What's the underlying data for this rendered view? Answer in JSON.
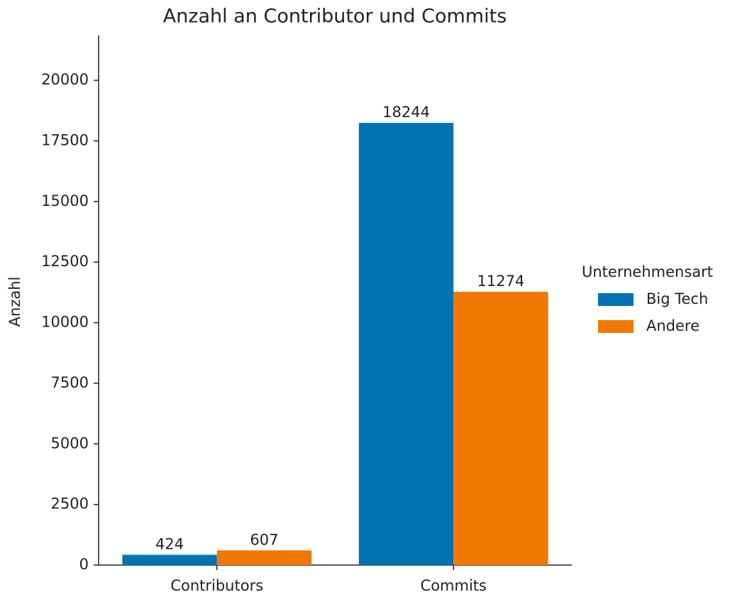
{
  "chart_data": {
    "type": "bar",
    "title": "Anzahl an Contributor und Commits",
    "y_label": "Anzahl",
    "categories": [
      "Contributors",
      "Commits"
    ],
    "series": [
      {
        "name": "Big Tech",
        "color": "#0173b2",
        "values": [
          424,
          18244
        ]
      },
      {
        "name": "Andere",
        "color": "#f07800",
        "values": [
          607,
          11274
        ]
      }
    ],
    "ylim": [
      0,
      21850
    ],
    "yticks": [
      0,
      2500,
      5000,
      7500,
      10000,
      12500,
      15000,
      17500,
      20000
    ],
    "legend": "center right",
    "legend_title": "Unternehmensart",
    "grid": false
  }
}
